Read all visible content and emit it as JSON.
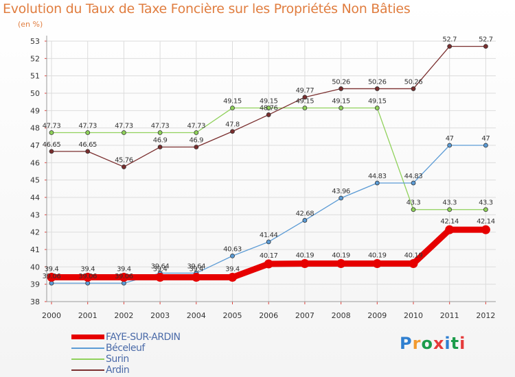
{
  "header": {
    "title": "Evolution du Taux de Taxe Foncière sur les Propriétés Non Bâties",
    "subtitle": "(en %)"
  },
  "logo": {
    "text": "Proxiti",
    "colors": [
      "#2f7fd0",
      "#f29a2e",
      "#1c9c4b",
      "#e53a3a",
      "#2f7fd0",
      "#1c9c4b",
      "#e53a3a"
    ]
  },
  "chart_data": {
    "type": "line",
    "title": "Evolution du Taux de Taxe Foncière sur les Propriétés Non Bâties",
    "ylabel": "(en %)",
    "xlabel": "",
    "x": [
      "2000",
      "2001",
      "2002",
      "2003",
      "2004",
      "2005",
      "2006",
      "2007",
      "2008",
      "2009",
      "2010",
      "2011",
      "2012"
    ],
    "ylim": [
      38,
      53
    ],
    "yticks": [
      38,
      39,
      40,
      41,
      42,
      43,
      44,
      45,
      46,
      47,
      48,
      49,
      50,
      51,
      52,
      53
    ],
    "grid": true,
    "legend_position": "bottom-left",
    "series": [
      {
        "name": "FAYE-SUR-ARDIN",
        "color": "#e60000",
        "values": [
          39.4,
          39.4,
          39.4,
          39.4,
          39.4,
          39.4,
          40.17,
          40.19,
          40.19,
          40.19,
          40.19,
          42.14,
          42.14
        ],
        "labels": [
          "39.4",
          "39.4",
          "39.4",
          "39.4",
          "39.4",
          "39.4",
          "40.17",
          "40.19",
          "40.19",
          "40.19",
          "40.19",
          "42.14",
          "42.14"
        ]
      },
      {
        "name": "Béceleuf",
        "color": "#5b9bd5",
        "values": [
          39.06,
          39.06,
          39.06,
          39.64,
          39.64,
          40.63,
          41.44,
          42.68,
          43.96,
          44.83,
          44.83,
          47,
          47
        ],
        "labels": [
          "39.06",
          "39.06",
          "39.06",
          "39.64",
          "39.64",
          "40.63",
          "41.44",
          "42.68",
          "43.96",
          "44.83",
          "44.83",
          "47",
          "47"
        ]
      },
      {
        "name": "Surin",
        "color": "#8fd15a",
        "values": [
          47.73,
          47.73,
          47.73,
          47.73,
          47.73,
          49.15,
          49.15,
          49.15,
          49.15,
          49.15,
          43.3,
          43.3,
          43.3
        ],
        "labels": [
          "47.73",
          "47.73",
          "47.73",
          "47.73",
          "47.73",
          "49.15",
          "49.15",
          "49.15",
          "49.15",
          "49.15",
          "43.3",
          "43.3",
          "43.3"
        ]
      },
      {
        "name": "Ardin",
        "color": "#7a2e2e",
        "values": [
          46.65,
          46.65,
          45.76,
          46.9,
          46.9,
          47.8,
          48.76,
          49.77,
          50.26,
          50.26,
          50.26,
          52.7,
          52.7
        ],
        "labels": [
          "46.65",
          "46.65",
          "45.76",
          "46.9",
          "46.9",
          "47.8",
          "48.76",
          "49.77",
          "50.26",
          "50.26",
          "50.26",
          "52.7",
          "52.7"
        ]
      }
    ]
  }
}
